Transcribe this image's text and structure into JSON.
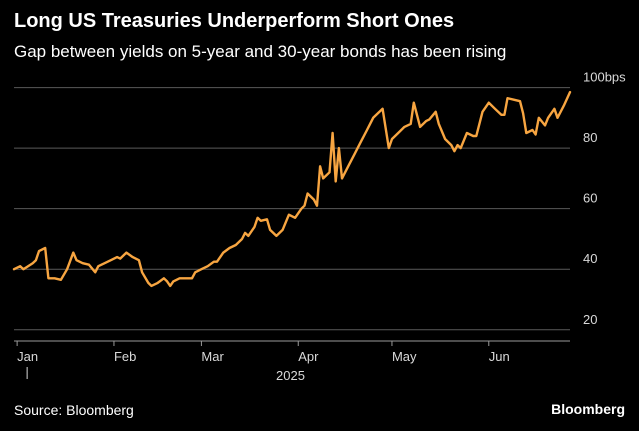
{
  "title": "Long US Treasuries Underperform Short Ones",
  "subtitle": "Gap between yields on 5-year and 30-year bonds has been rising",
  "footer": {
    "source": "Source: Bloomberg",
    "brand": "Bloomberg"
  },
  "colors": {
    "background": "#000000",
    "line": "#f7a541",
    "grid": "#5a5a5a",
    "text": "#ffffff",
    "tick_text": "#d9d9d9"
  },
  "chart_data": {
    "type": "line",
    "title": "Long US Treasuries Underperform Short Ones",
    "subtitle": "Gap between yields on 5-year and 30-year bonds has been rising",
    "xlabel": "",
    "ylabel": "",
    "year_label": "2025",
    "x_ticks": [
      {
        "label": "Jan",
        "date": "2025-01-01"
      },
      {
        "label": "Feb",
        "date": "2025-02-01"
      },
      {
        "label": "Mar",
        "date": "2025-03-01"
      },
      {
        "label": "Apr",
        "date": "2025-04-01"
      },
      {
        "label": "May",
        "date": "2025-05-01"
      },
      {
        "label": "Jun",
        "date": "2025-06-01"
      }
    ],
    "y_ticks": [
      {
        "value": 20,
        "label": "20"
      },
      {
        "value": 40,
        "label": "40"
      },
      {
        "value": 60,
        "label": "60"
      },
      {
        "value": 80,
        "label": "80"
      },
      {
        "value": 100,
        "label": "100bps"
      }
    ],
    "xlim": [
      "2024-12-31",
      "2025-06-27"
    ],
    "ylim": [
      16.3,
      102.5
    ],
    "grid": true,
    "series": [
      {
        "points": [
          [
            "2024-12-31",
            40
          ],
          [
            "2025-01-02",
            41
          ],
          [
            "2025-01-03",
            40
          ],
          [
            "2025-01-06",
            42
          ],
          [
            "2025-01-07",
            43
          ],
          [
            "2025-01-08",
            46
          ],
          [
            "2025-01-10",
            47
          ],
          [
            "2025-01-11",
            37
          ],
          [
            "2025-01-13",
            37
          ],
          [
            "2025-01-15",
            36.5
          ],
          [
            "2025-01-17",
            40
          ],
          [
            "2025-01-19",
            45.5
          ],
          [
            "2025-01-20",
            43
          ],
          [
            "2025-01-22",
            42
          ],
          [
            "2025-01-24",
            41.5
          ],
          [
            "2025-01-26",
            39
          ],
          [
            "2025-01-27",
            41
          ],
          [
            "2025-01-29",
            42
          ],
          [
            "2025-01-31",
            43
          ],
          [
            "2025-02-02",
            44
          ],
          [
            "2025-02-03",
            43.5
          ],
          [
            "2025-02-05",
            45.5
          ],
          [
            "2025-02-07",
            44
          ],
          [
            "2025-02-09",
            43
          ],
          [
            "2025-02-10",
            39
          ],
          [
            "2025-02-12",
            35.5
          ],
          [
            "2025-02-13",
            34.5
          ],
          [
            "2025-02-15",
            35.5
          ],
          [
            "2025-02-17",
            37
          ],
          [
            "2025-02-18",
            36
          ],
          [
            "2025-02-19",
            34.5
          ],
          [
            "2025-02-20",
            36
          ],
          [
            "2025-02-22",
            37
          ],
          [
            "2025-02-24",
            37
          ],
          [
            "2025-02-26",
            37
          ],
          [
            "2025-02-27",
            39
          ],
          [
            "2025-03-01",
            40
          ],
          [
            "2025-03-03",
            41
          ],
          [
            "2025-03-05",
            42.5
          ],
          [
            "2025-03-06",
            42.5
          ],
          [
            "2025-03-08",
            45.5
          ],
          [
            "2025-03-10",
            47
          ],
          [
            "2025-03-12",
            48
          ],
          [
            "2025-03-14",
            50
          ],
          [
            "2025-03-15",
            52
          ],
          [
            "2025-03-16",
            51
          ],
          [
            "2025-03-18",
            54
          ],
          [
            "2025-03-19",
            57
          ],
          [
            "2025-03-20",
            56
          ],
          [
            "2025-03-22",
            56.5
          ],
          [
            "2025-03-23",
            53
          ],
          [
            "2025-03-25",
            51
          ],
          [
            "2025-03-27",
            53
          ],
          [
            "2025-03-29",
            58
          ],
          [
            "2025-03-31",
            57
          ],
          [
            "2025-04-02",
            60
          ],
          [
            "2025-04-03",
            61
          ],
          [
            "2025-04-04",
            65
          ],
          [
            "2025-04-06",
            63
          ],
          [
            "2025-04-07",
            61
          ],
          [
            "2025-04-08",
            74
          ],
          [
            "2025-04-09",
            70
          ],
          [
            "2025-04-11",
            72
          ],
          [
            "2025-04-12",
            85
          ],
          [
            "2025-04-13",
            69
          ],
          [
            "2025-04-14",
            80
          ],
          [
            "2025-04-15",
            70
          ],
          [
            "2025-04-17",
            74
          ],
          [
            "2025-04-19",
            78
          ],
          [
            "2025-04-21",
            82
          ],
          [
            "2025-04-23",
            86
          ],
          [
            "2025-04-25",
            90
          ],
          [
            "2025-04-28",
            93
          ],
          [
            "2025-04-30",
            80
          ],
          [
            "2025-05-01",
            83
          ],
          [
            "2025-05-03",
            85
          ],
          [
            "2025-05-05",
            87
          ],
          [
            "2025-05-07",
            88
          ],
          [
            "2025-05-08",
            95
          ],
          [
            "2025-05-10",
            87
          ],
          [
            "2025-05-12",
            89
          ],
          [
            "2025-05-13",
            89.5
          ],
          [
            "2025-05-15",
            92
          ],
          [
            "2025-05-16",
            88
          ],
          [
            "2025-05-18",
            83
          ],
          [
            "2025-05-20",
            81
          ],
          [
            "2025-05-21",
            79
          ],
          [
            "2025-05-22",
            81
          ],
          [
            "2025-05-23",
            80
          ],
          [
            "2025-05-25",
            85
          ],
          [
            "2025-05-27",
            84
          ],
          [
            "2025-05-28",
            84
          ],
          [
            "2025-05-30",
            92
          ],
          [
            "2025-06-01",
            95
          ],
          [
            "2025-06-03",
            93
          ],
          [
            "2025-06-05",
            91
          ],
          [
            "2025-06-06",
            91
          ],
          [
            "2025-06-07",
            96.5
          ],
          [
            "2025-06-09",
            96
          ],
          [
            "2025-06-11",
            95.5
          ],
          [
            "2025-06-12",
            91.5
          ],
          [
            "2025-06-13",
            85
          ],
          [
            "2025-06-15",
            86
          ],
          [
            "2025-06-16",
            84.5
          ],
          [
            "2025-06-17",
            90
          ],
          [
            "2025-06-19",
            87.5
          ],
          [
            "2025-06-20",
            90
          ],
          [
            "2025-06-22",
            93
          ],
          [
            "2025-06-23",
            90
          ],
          [
            "2025-06-25",
            94
          ],
          [
            "2025-06-27",
            98.5
          ]
        ]
      }
    ]
  }
}
